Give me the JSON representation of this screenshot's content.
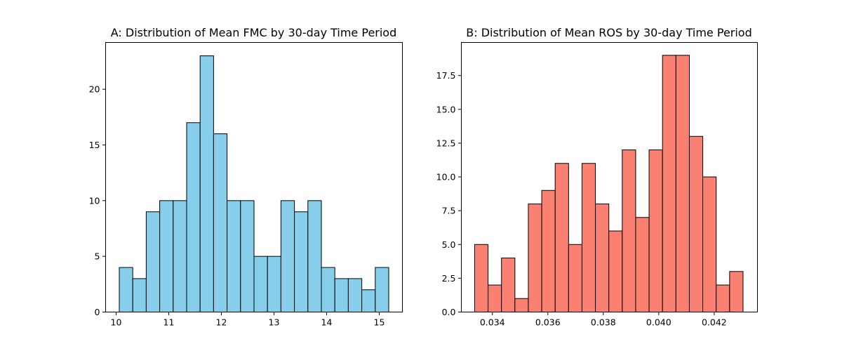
{
  "chart_data": [
    {
      "type": "bar",
      "title": "A: Distribution of Mean FMC by 30-day Time Period",
      "xlabel": "",
      "ylabel": "",
      "color": "#87ceeb",
      "edge_color": "#000000",
      "xlim": [
        9.8,
        15.44
      ],
      "ylim": [
        0,
        24.2
      ],
      "xticks": [
        10,
        11,
        12,
        13,
        14,
        15
      ],
      "xtick_labels": [
        "10",
        "11",
        "12",
        "13",
        "14",
        "15"
      ],
      "yticks": [
        0,
        5,
        10,
        15,
        20
      ],
      "ytick_labels": [
        "0",
        "5",
        "10",
        "15",
        "20"
      ],
      "bin_edges": [
        10.06,
        10.316,
        10.572,
        10.828,
        11.084,
        11.34,
        11.596,
        11.852,
        12.108,
        12.364,
        12.62,
        12.876,
        13.132,
        13.388,
        13.644,
        13.9,
        14.156,
        14.412,
        14.668,
        14.924,
        15.18
      ],
      "values": [
        4,
        3,
        9,
        10,
        10,
        17,
        23,
        16,
        10,
        10,
        5,
        5,
        10,
        9,
        10,
        4,
        3,
        3,
        2,
        4
      ]
    },
    {
      "type": "bar",
      "title": "B: Distribution of Mean ROS by 30-day Time Period",
      "xlabel": "",
      "ylabel": "",
      "color": "#fa8072",
      "edge_color": "#000000",
      "xlim": [
        0.03288,
        0.04356
      ],
      "ylim": [
        0,
        19.95
      ],
      "xticks": [
        0.034,
        0.036,
        0.038,
        0.04,
        0.042
      ],
      "xtick_labels": [
        "0.034",
        "0.036",
        "0.038",
        "0.040",
        "0.042"
      ],
      "yticks": [
        0,
        2.5,
        5,
        7.5,
        10,
        12.5,
        15,
        17.5
      ],
      "ytick_labels": [
        "0.0",
        "2.5",
        "5.0",
        "7.5",
        "10.0",
        "12.5",
        "15.0",
        "17.5"
      ],
      "bin_edges": [
        0.03336,
        0.033844,
        0.034328,
        0.034812,
        0.035296,
        0.03578,
        0.036264,
        0.036748,
        0.037232,
        0.037716,
        0.0382,
        0.038684,
        0.039168,
        0.039652,
        0.040136,
        0.04062,
        0.041104,
        0.041588,
        0.042072,
        0.042556,
        0.04304
      ],
      "values": [
        5,
        2,
        4,
        1,
        8,
        9,
        11,
        5,
        11,
        8,
        6,
        12,
        7,
        12,
        19,
        19,
        13,
        10,
        2,
        3
      ]
    }
  ]
}
